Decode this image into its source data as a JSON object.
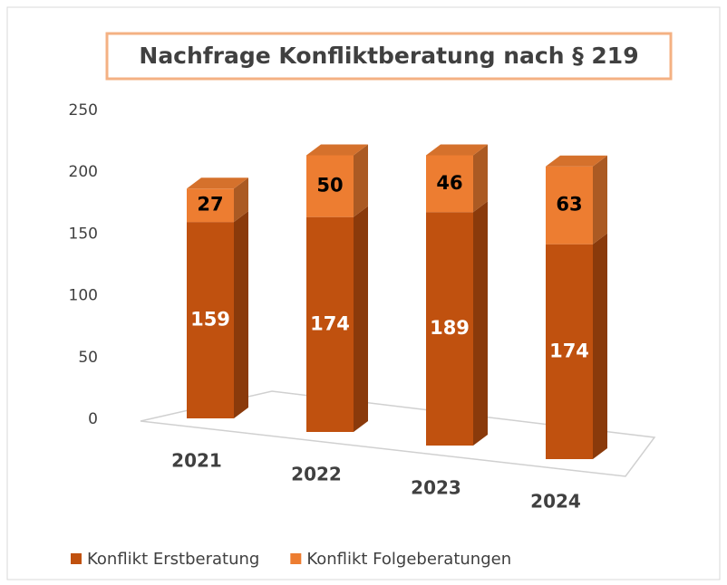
{
  "chart_data": {
    "type": "bar3d_stacked",
    "title": "Nachfrage Konfliktberatung nach § 219",
    "categories": [
      "2021",
      "2022",
      "2023",
      "2024"
    ],
    "series": [
      {
        "name": "Konflikt Erstberatung",
        "color": "#c0510f",
        "values": [
          159,
          174,
          189,
          174
        ]
      },
      {
        "name": "Konflikt Folgeberatungen",
        "color": "#ed7d31",
        "values": [
          27,
          50,
          46,
          63
        ]
      }
    ],
    "ylim": [
      0,
      250
    ],
    "yticks": [
      0,
      50,
      100,
      150,
      200,
      250
    ],
    "grid": false
  }
}
